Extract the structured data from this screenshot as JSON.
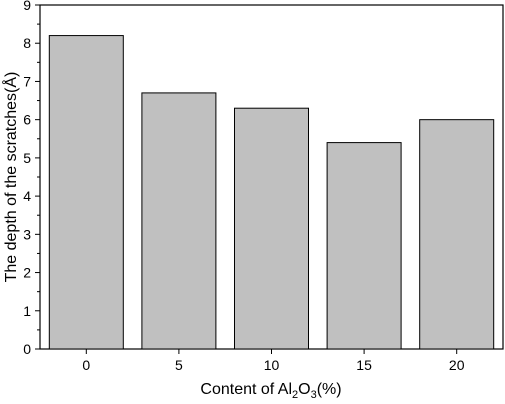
{
  "chart_data": {
    "type": "bar",
    "categories": [
      "0",
      "5",
      "10",
      "15",
      "20"
    ],
    "values": [
      8.2,
      6.7,
      6.3,
      5.4,
      6.0
    ],
    "xlabel": "Content of Al2O3(%)",
    "xlabel_parts": {
      "prefix": "Content of Al",
      "sub1": "2",
      "mid": "O",
      "sub2": "3",
      "suffix": "(%)"
    },
    "ylabel": "The depth of the scratches(Å)",
    "ylim": [
      0,
      9
    ],
    "yticks": [
      "0",
      "1",
      "2",
      "3",
      "4",
      "5",
      "6",
      "7",
      "8",
      "9"
    ],
    "grid": false,
    "legend": "none",
    "colors": {
      "bar": "#c0c0c0",
      "stroke": "#000000"
    }
  }
}
